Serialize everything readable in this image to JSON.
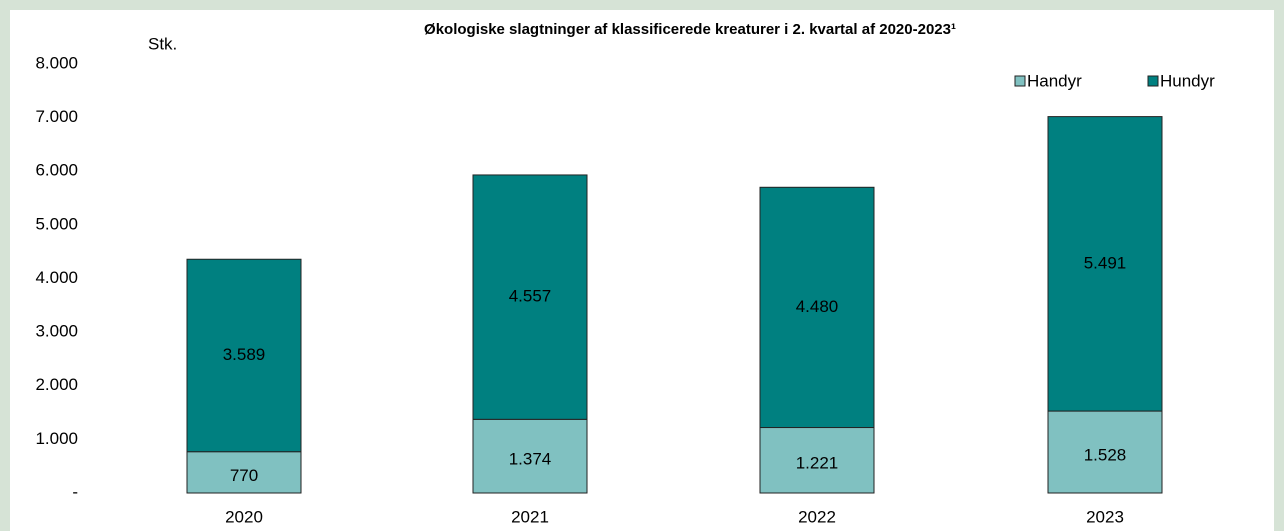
{
  "chart_data": {
    "type": "stacked_bar",
    "title": "Økologiske slagtninger af klassificerede  kreaturer i 2. kvartal af 2020-2023¹",
    "y_label": "Stk.",
    "categories": [
      "2020",
      "2021",
      "2022",
      "2023"
    ],
    "series": [
      {
        "name": "Handyr",
        "color": "#80c1c1",
        "values": [
          770,
          1374,
          1221,
          1528
        ],
        "value_labels": [
          "770",
          "1.374",
          "1.221",
          "1.528"
        ]
      },
      {
        "name": "Hundyr",
        "color": "#008080",
        "values": [
          3589,
          4557,
          4480,
          5491
        ],
        "value_labels": [
          "3.589",
          "4.557",
          "4.480",
          "5.491"
        ]
      }
    ],
    "ylim": [
      0,
      8000
    ],
    "yticks": [
      {
        "value": 0,
        "label": "-"
      },
      {
        "value": 1000,
        "label": "1.000"
      },
      {
        "value": 2000,
        "label": "2.000"
      },
      {
        "value": 3000,
        "label": "3.000"
      },
      {
        "value": 4000,
        "label": "4.000"
      },
      {
        "value": 5000,
        "label": "5.000"
      },
      {
        "value": 6000,
        "label": "6.000"
      },
      {
        "value": 7000,
        "label": "7.000"
      },
      {
        "value": 8000,
        "label": "8.000"
      }
    ],
    "legend": "top-right"
  }
}
